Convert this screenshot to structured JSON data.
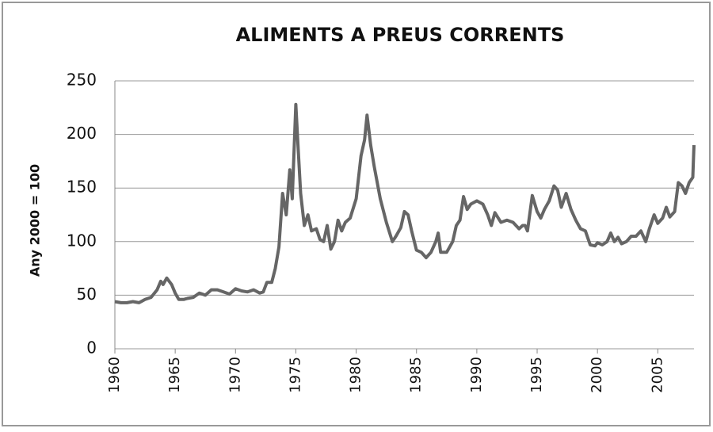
{
  "chart_data": {
    "type": "line",
    "title": "ALIMENTS A PREUS CORRENTS",
    "y_label": "Any 2000 = 100",
    "x": [
      1960,
      1960.5,
      1961,
      1961.5,
      1962,
      1962.5,
      1963,
      1963.5,
      1963.8,
      1964,
      1964.3,
      1964.7,
      1965,
      1965.3,
      1965.7,
      1966,
      1966.5,
      1967,
      1967.5,
      1968,
      1968.5,
      1969,
      1969.5,
      1970,
      1970.5,
      1971,
      1971.5,
      1972,
      1972.3,
      1972.6,
      1973,
      1973.3,
      1973.6,
      1973.9,
      1974.2,
      1974.5,
      1974.7,
      1975,
      1975.2,
      1975.4,
      1975.7,
      1976,
      1976.3,
      1976.7,
      1977,
      1977.3,
      1977.6,
      1977.9,
      1978.2,
      1978.5,
      1978.8,
      1979.1,
      1979.5,
      1980,
      1980.4,
      1980.7,
      1980.9,
      1981.2,
      1981.5,
      1982,
      1982.5,
      1983,
      1983.3,
      1983.7,
      1984,
      1984.3,
      1984.6,
      1985,
      1985.4,
      1985.8,
      1986.2,
      1986.6,
      1986.8,
      1987,
      1987.5,
      1988,
      1988.3,
      1988.6,
      1988.9,
      1989.2,
      1989.5,
      1990,
      1990.5,
      1990.9,
      1991.2,
      1991.5,
      1992,
      1992.5,
      1993,
      1993.5,
      1993.8,
      1994,
      1994.2,
      1994.6,
      1995,
      1995.3,
      1995.6,
      1996,
      1996.4,
      1996.7,
      1997,
      1997.4,
      1997.8,
      1998.2,
      1998.6,
      1999,
      1999.4,
      1999.8,
      2000,
      2000.4,
      2000.8,
      2001.1,
      2001.4,
      2001.7,
      2002,
      2002.4,
      2002.8,
      2003.2,
      2003.6,
      2004,
      2004.3,
      2004.7,
      2005,
      2005.4,
      2005.7,
      2006,
      2006.4,
      2006.7,
      2007,
      2007.3,
      2007.6,
      2007.9,
      2008
    ],
    "series": [
      {
        "name": "Aliments",
        "color": "#666666",
        "values": [
          44,
          43,
          43,
          44,
          43,
          46,
          48,
          55,
          63,
          60,
          66,
          60,
          52,
          46,
          46,
          47,
          48,
          52,
          50,
          55,
          55,
          53,
          51,
          56,
          54,
          53,
          55,
          52,
          53,
          62,
          62,
          75,
          95,
          145,
          125,
          167,
          140,
          228,
          185,
          145,
          115,
          125,
          110,
          112,
          102,
          100,
          115,
          93,
          100,
          120,
          110,
          118,
          122,
          140,
          180,
          195,
          218,
          190,
          170,
          140,
          118,
          100,
          105,
          113,
          128,
          125,
          110,
          92,
          90,
          85,
          90,
          100,
          108,
          90,
          90,
          100,
          115,
          120,
          142,
          130,
          135,
          138,
          135,
          125,
          115,
          127,
          118,
          120,
          118,
          112,
          115,
          115,
          110,
          143,
          128,
          122,
          130,
          138,
          152,
          148,
          132,
          145,
          130,
          120,
          112,
          110,
          97,
          96,
          99,
          97,
          100,
          108,
          100,
          104,
          98,
          100,
          105,
          105,
          110,
          100,
          112,
          125,
          117,
          122,
          132,
          123,
          128,
          155,
          152,
          145,
          155,
          160,
          190
        ]
      }
    ],
    "xlim": [
      1960,
      2008
    ],
    "xticks": [
      1960,
      1965,
      1970,
      1975,
      1980,
      1985,
      1990,
      1995,
      2000,
      2005
    ],
    "ylim": [
      0,
      250
    ],
    "yticks": [
      0,
      50,
      100,
      150,
      200,
      250
    ],
    "grid": true
  }
}
